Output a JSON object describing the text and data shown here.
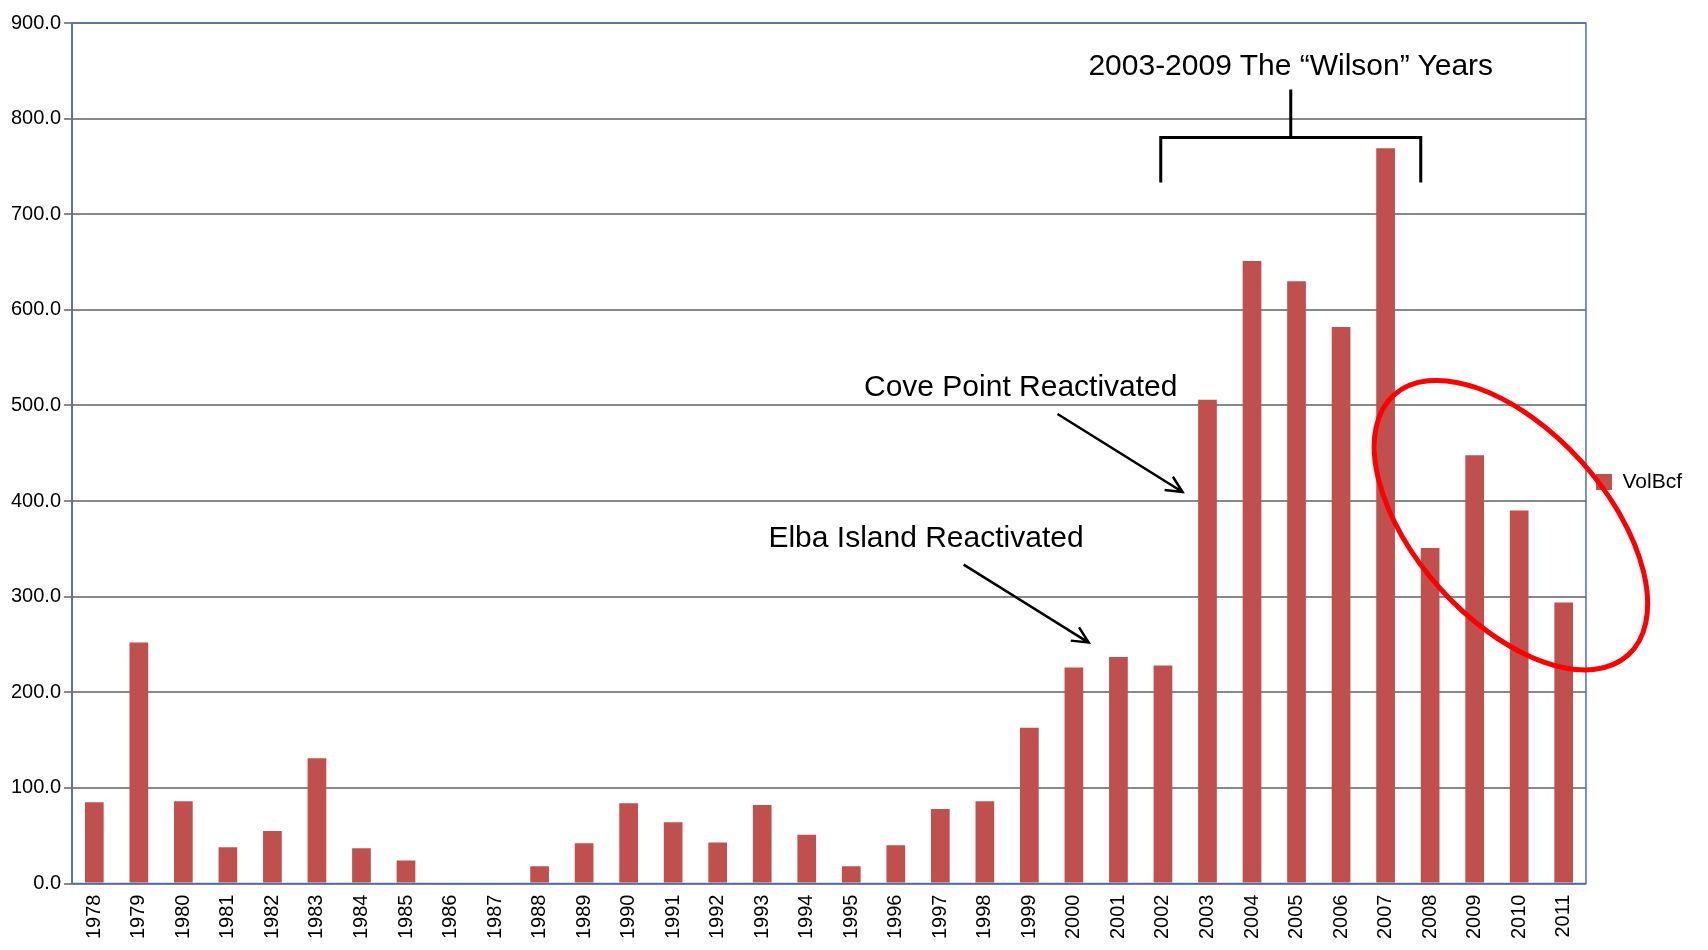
{
  "chart_data": {
    "type": "bar",
    "categories": [
      "1978",
      "1979",
      "1980",
      "1981",
      "1982",
      "1983",
      "1984",
      "1985",
      "1986",
      "1987",
      "1988",
      "1989",
      "1990",
      "1991",
      "1992",
      "1993",
      "1994",
      "1995",
      "1996",
      "1997",
      "1998",
      "1999",
      "2000",
      "2001",
      "2002",
      "2003",
      "2004",
      "2005",
      "2006",
      "2007",
      "2008",
      "2009",
      "2010",
      "2011"
    ],
    "series": [
      {
        "name": "VolBcf",
        "color": "#c0504d",
        "values": [
          85,
          252,
          86,
          38,
          55,
          131,
          37,
          24,
          1,
          0,
          18,
          42,
          84,
          64,
          43,
          82,
          51,
          18,
          40,
          78,
          86,
          163,
          226,
          237,
          228,
          506,
          651,
          630,
          582,
          769,
          351,
          448,
          390,
          294
        ]
      }
    ],
    "ylim": [
      0,
      900
    ],
    "yticks": [
      {
        "value": 0,
        "label": "0.0"
      },
      {
        "value": 100,
        "label": "100.0"
      },
      {
        "value": 200,
        "label": "200.0"
      },
      {
        "value": 300,
        "label": "300.0"
      },
      {
        "value": 400,
        "label": "400.0"
      },
      {
        "value": 500,
        "label": "500.0"
      },
      {
        "value": 600,
        "label": "600.0"
      },
      {
        "value": 700,
        "label": "700.0"
      },
      {
        "value": 800,
        "label": "800.0"
      },
      {
        "value": 900,
        "label": "900.0"
      }
    ],
    "grid": "y",
    "legend": "right",
    "annotations": [
      "2003-2009 The “Wilson” Years",
      "Cove Point Reactivated",
      "Elba Island Reactivated"
    ]
  }
}
